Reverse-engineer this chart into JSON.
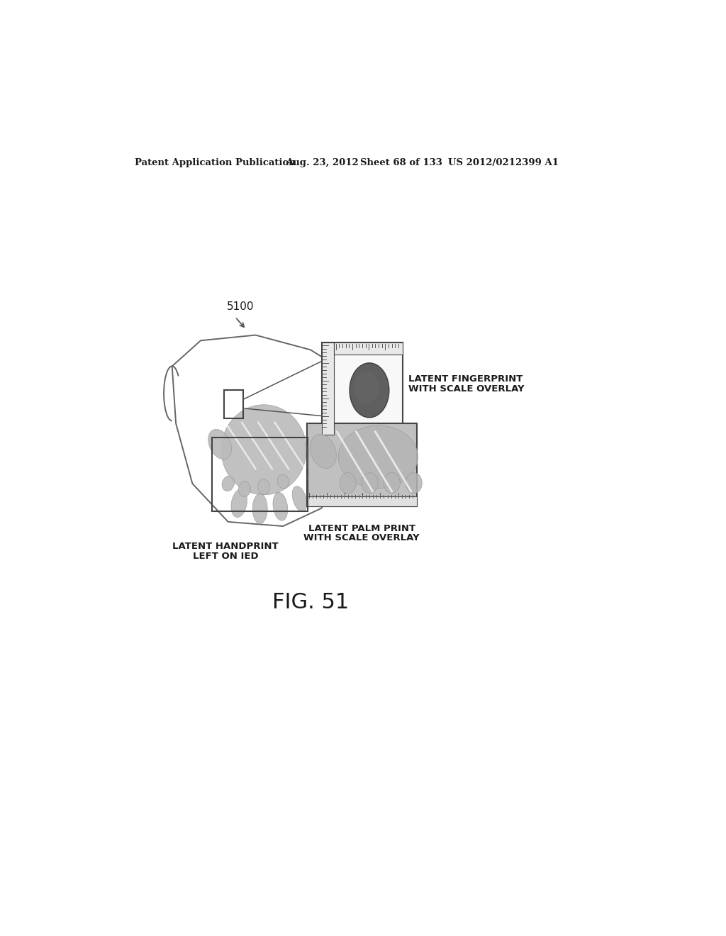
{
  "background_color": "#ffffff",
  "header_text": "Patent Application Publication",
  "header_date": "Aug. 23, 2012",
  "header_sheet": "Sheet 68 of 133",
  "header_patent": "US 2012/0212399 A1",
  "label_5100": "5100",
  "label_fingerprint_line1": "LATENT FINGERPRINT",
  "label_fingerprint_line2": "WITH SCALE OVERLAY",
  "label_handprint_line1": "LATENT HANDPRINT",
  "label_handprint_line2": "LEFT ON IED",
  "label_palmprint_line1": "LATENT PALM PRINT",
  "label_palmprint_line2": "WITH SCALE OVERLAY",
  "figure_label": "FIG. 51",
  "text_color": "#1a1a1a",
  "line_color": "#555555",
  "hand_fill": "#bbbbbb",
  "hand_edge": "#999999",
  "palm_box_fill": "#c8c8c8",
  "fp_card_fill": "#f5f5f5",
  "pp_card_fill": "#c0c0c0",
  "device_outline": "#666666",
  "box_color": "#444444"
}
